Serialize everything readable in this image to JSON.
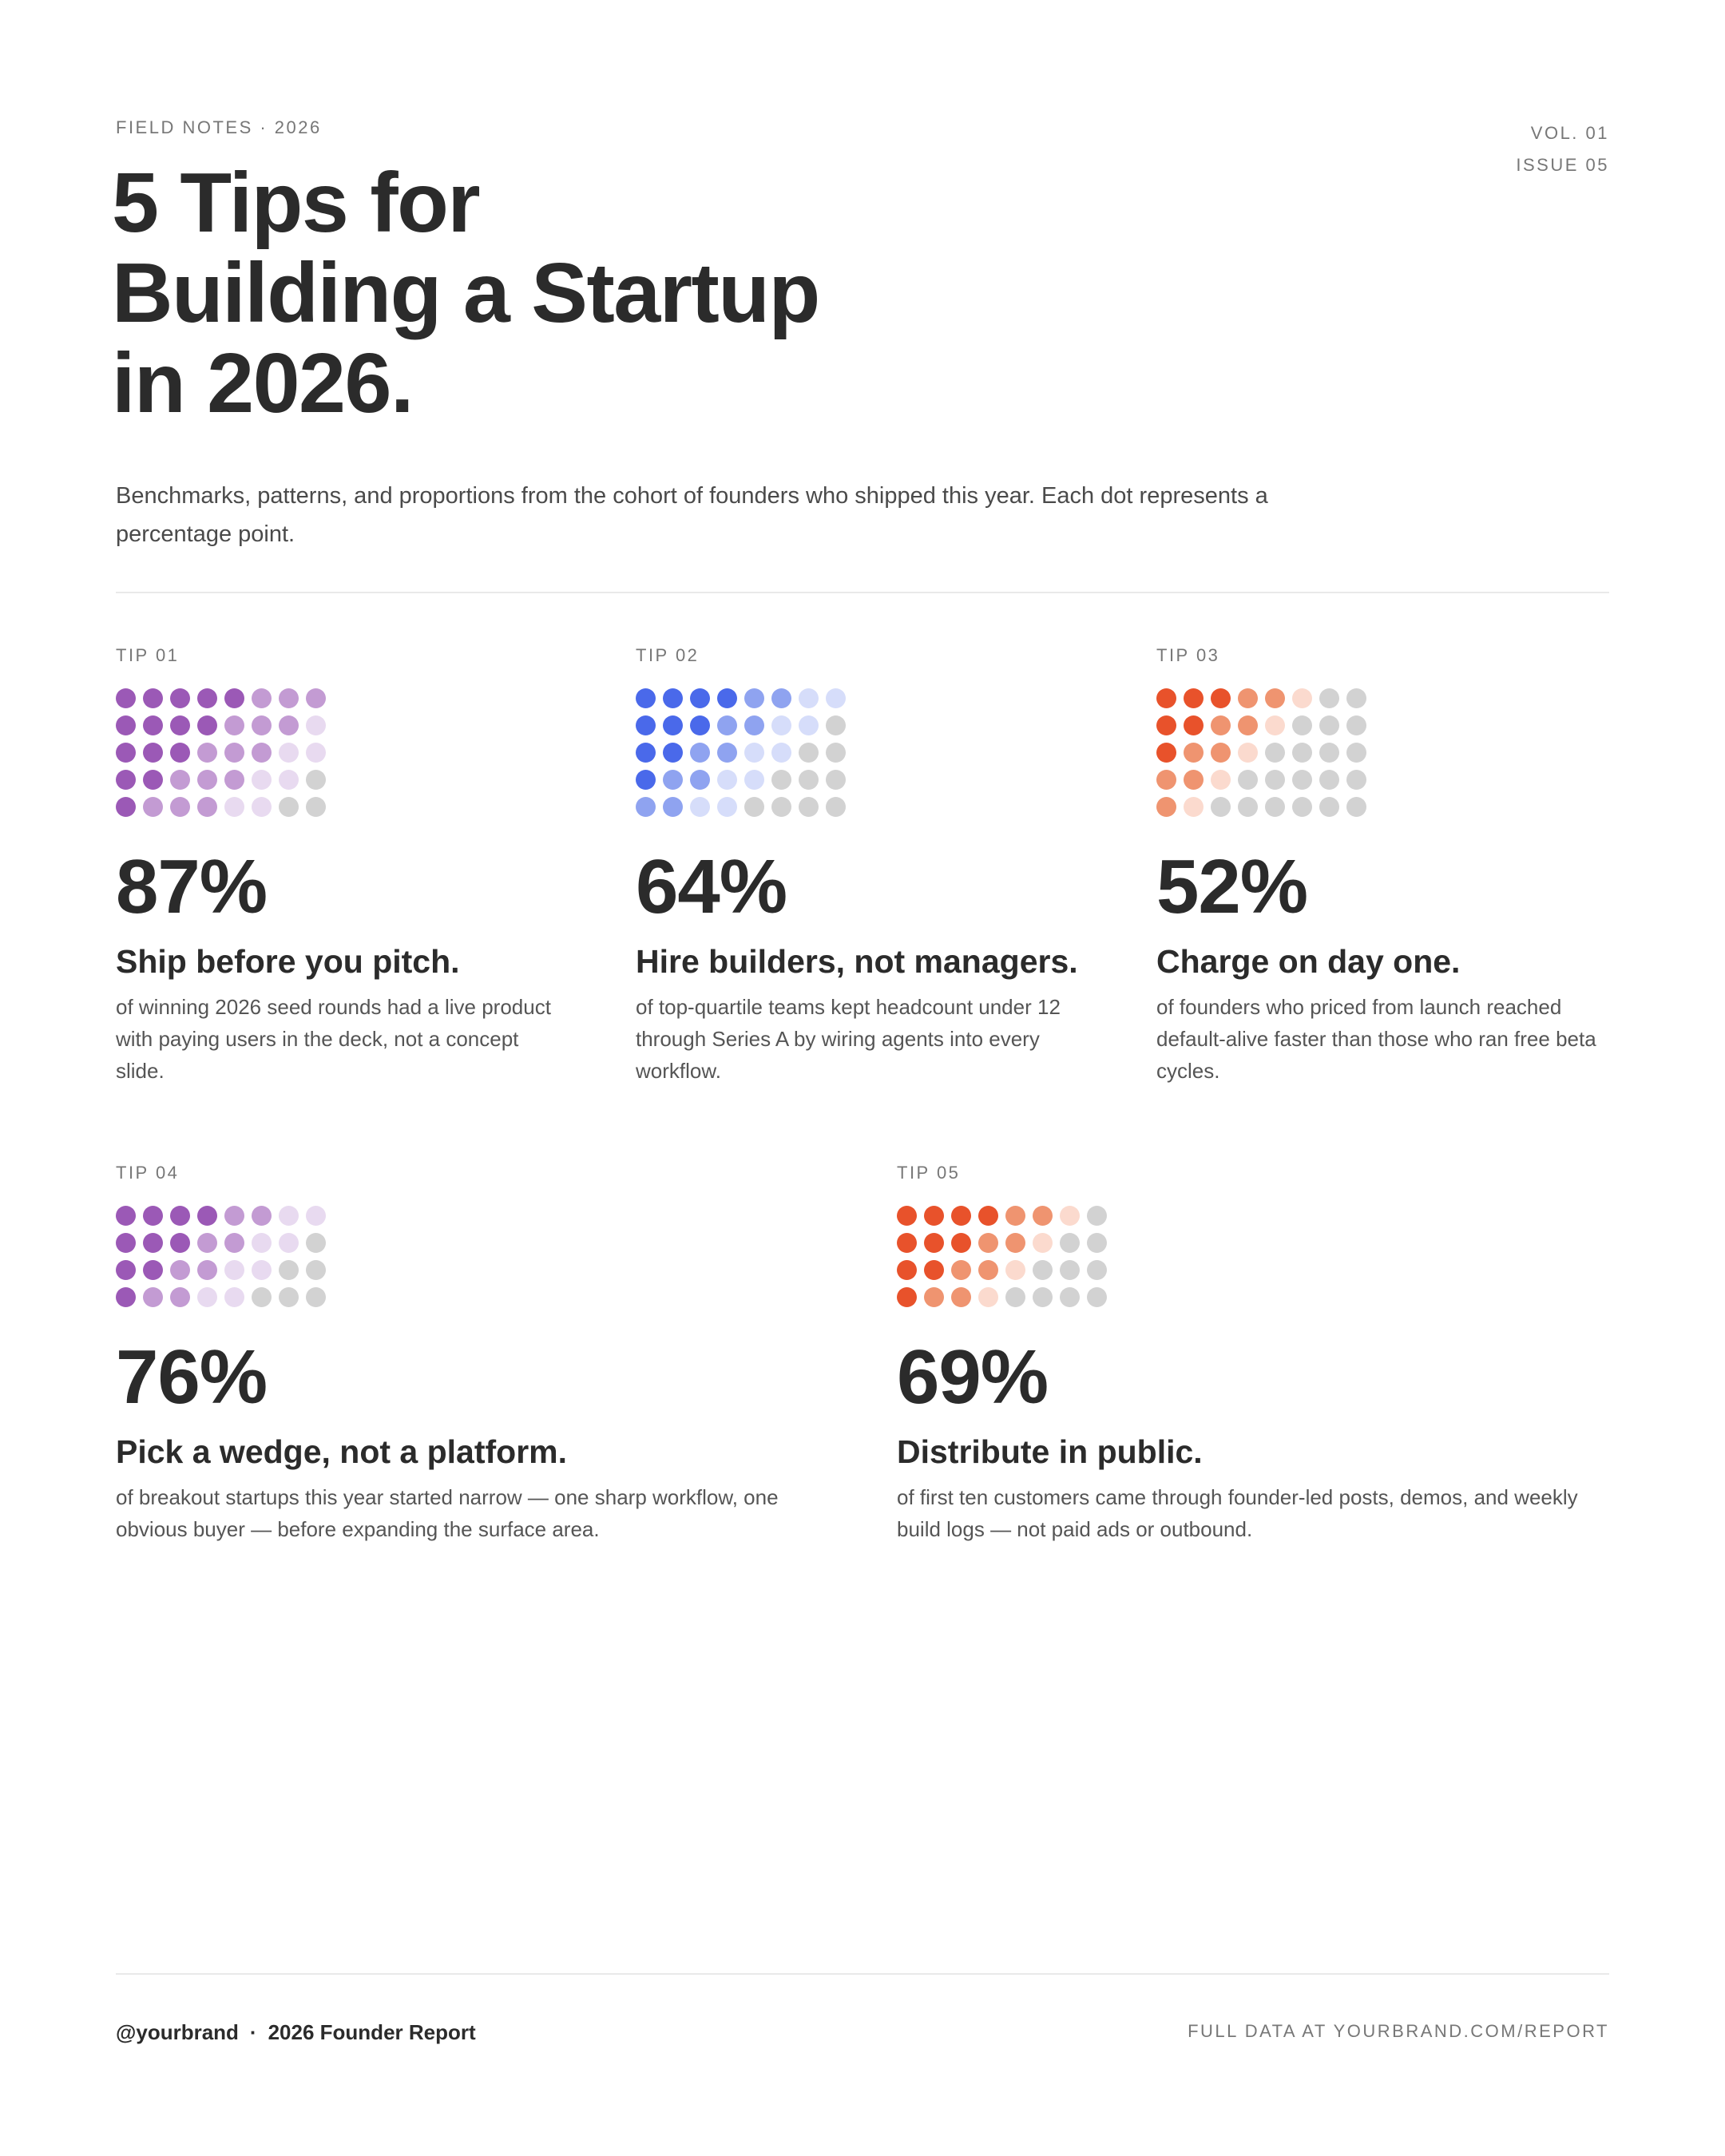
{
  "header": {
    "eyebrow": "FIELD NOTES · 2026",
    "vol": "VOL. 01",
    "issue": "ISSUE 05"
  },
  "title": {
    "lines": [
      "5 Tips for",
      "Building a Startup",
      "in 2026."
    ]
  },
  "intro": "Benchmarks, patterns, and proportions from the cohort of founders who shipped this year. Each dot represents a percentage point.",
  "colors": {
    "text": "#2b2b2b",
    "muted": "#777777",
    "empty_dot": "#d2d2d2",
    "purple": [
      "#9b59b6",
      "#c39bd3",
      "#e8daf0"
    ],
    "blue": [
      "#4a69ea",
      "#8fa3f0",
      "#d6ddfa"
    ],
    "orange": [
      "#e8522b",
      "#ef9470",
      "#fbdace"
    ]
  },
  "tips": [
    {
      "label": "TIP 01",
      "percent": 87,
      "percent_label": "87%",
      "title": "Ship before you pitch.",
      "description": "of winning 2026 seed rounds had a live product with paying users in the deck, not a concept slide.",
      "palette": "purple",
      "dot_rows": 5
    },
    {
      "label": "TIP 02",
      "percent": 64,
      "percent_label": "64%",
      "title": "Hire builders, not managers.",
      "description": "of top-quartile teams kept headcount under 12 through Series A by wiring agents into every workflow.",
      "palette": "blue",
      "dot_rows": 5
    },
    {
      "label": "TIP 03",
      "percent": 52,
      "percent_label": "52%",
      "title": "Charge on day one.",
      "description": "of founders who priced from launch reached default-alive faster than those who ran free beta cycles.",
      "palette": "orange",
      "dot_rows": 5
    },
    {
      "label": "TIP 04",
      "percent": 76,
      "percent_label": "76%",
      "title": "Pick a wedge, not a platform.",
      "description": "of breakout startups this year started narrow — one sharp workflow, one obvious buyer — before expanding the surface area.",
      "palette": "purple",
      "dot_rows": 4
    },
    {
      "label": "TIP 05",
      "percent": 69,
      "percent_label": "69%",
      "title": "Distribute in public.",
      "description": "of first ten customers came through founder-led posts, demos, and weekly build logs — not paid ads or outbound.",
      "palette": "orange",
      "dot_rows": 4
    }
  ],
  "footer": {
    "handle": "@yourbrand",
    "separator": "·",
    "report": "2026 Founder Report",
    "link": "FULL DATA AT YOURBRAND.COM/REPORT"
  }
}
